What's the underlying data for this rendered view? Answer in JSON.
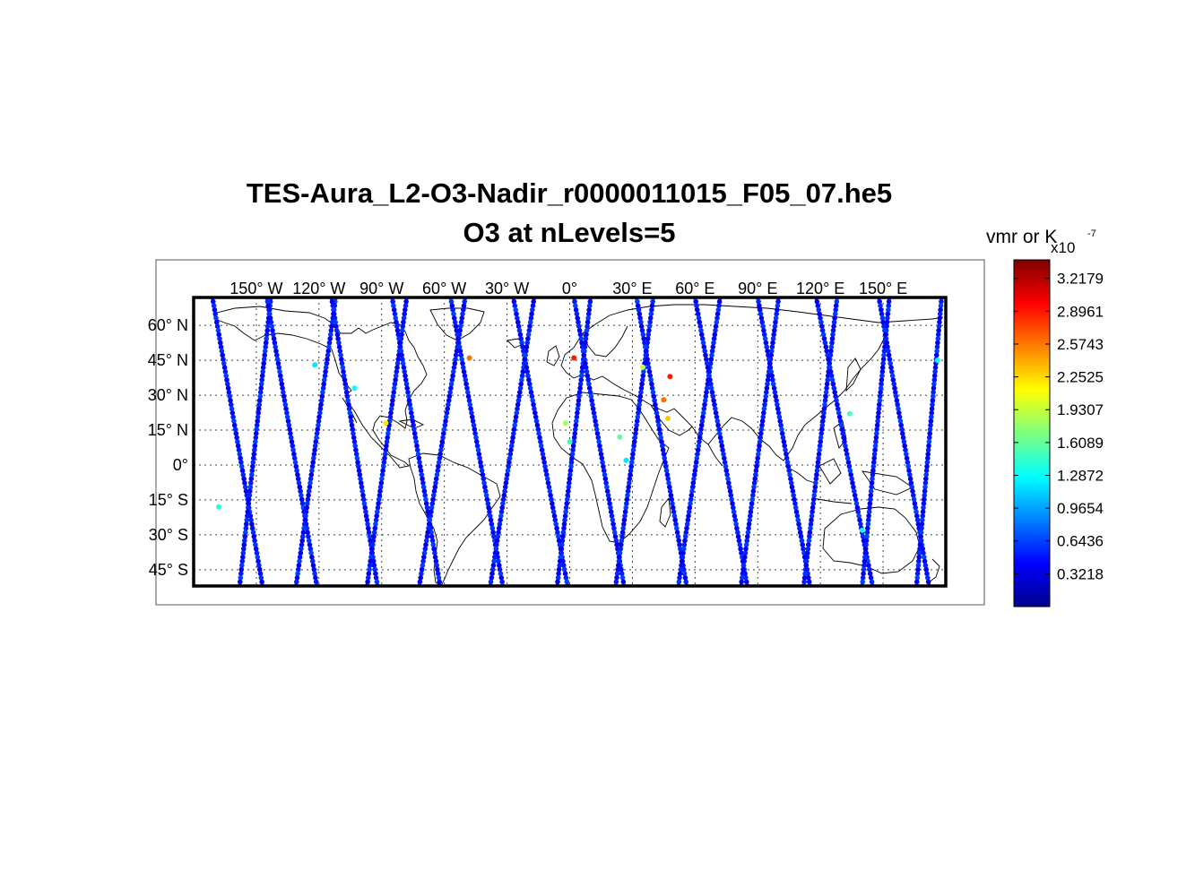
{
  "figure": {
    "title": "TES-Aura_L2-O3-Nadir_r0000011015_F05_07.he5",
    "subtitle": "O3 at nLevels=5"
  },
  "map": {
    "projection": "equirectangular",
    "lon_range": [
      -180,
      180
    ],
    "lat_range": [
      -52,
      72
    ],
    "grid": true,
    "coastlines": true,
    "lon_ticks": [
      {
        "value": -150,
        "label": "150° W"
      },
      {
        "value": -120,
        "label": "120° W"
      },
      {
        "value": -90,
        "label": "90° W"
      },
      {
        "value": -60,
        "label": "60° W"
      },
      {
        "value": -30,
        "label": "30° W"
      },
      {
        "value": 0,
        "label": "0°"
      },
      {
        "value": 30,
        "label": "30° E"
      },
      {
        "value": 60,
        "label": "60° E"
      },
      {
        "value": 90,
        "label": "90° E"
      },
      {
        "value": 120,
        "label": "120° E"
      },
      {
        "value": 150,
        "label": "150° E"
      }
    ],
    "lat_ticks": [
      {
        "value": 60,
        "label": "60° N"
      },
      {
        "value": 45,
        "label": "45° N"
      },
      {
        "value": 30,
        "label": "30° N"
      },
      {
        "value": 15,
        "label": "15° N"
      },
      {
        "value": 0,
        "label": "0°"
      },
      {
        "value": -15,
        "label": "15° S"
      },
      {
        "value": -30,
        "label": "30° S"
      },
      {
        "value": -45,
        "label": "45° S"
      }
    ]
  },
  "colorbar": {
    "label": "vmr or K",
    "exponent_label": "x10",
    "exponent_power": "-7",
    "range": [
      0.0,
      3.4
    ],
    "ticks": [
      3.2179,
      2.8961,
      2.5743,
      2.2525,
      1.9307,
      1.6089,
      1.2872,
      0.9654,
      0.6436,
      0.3218
    ],
    "tick_labels": [
      "3.2179",
      "2.8961",
      "2.5743",
      "2.2525",
      "1.9307",
      "1.6089",
      "1.2872",
      "0.9654",
      "0.6436",
      "0.3218"
    ],
    "colormap": "jet"
  },
  "chart_data": {
    "type": "scatter",
    "title": "TES-Aura_L2-O3-Nadir_r0000011015_F05_07.he5",
    "subtitle": "O3 at nLevels=5",
    "xlabel": "",
    "ylabel": "",
    "xlim": [
      -180,
      180
    ],
    "ylim": [
      -52,
      72
    ],
    "typical_value": 0.5,
    "orbit_tracks": [
      {
        "lon_north": -171,
        "lon_south": -147,
        "direction": "ascending"
      },
      {
        "lon_north": -143,
        "lon_south": -158,
        "direction": "descending"
      },
      {
        "lon_north": -145,
        "lon_south": -121,
        "direction": "ascending"
      },
      {
        "lon_north": -112,
        "lon_south": -131,
        "direction": "descending"
      },
      {
        "lon_north": -114,
        "lon_south": -92,
        "direction": "ascending"
      },
      {
        "lon_north": -78,
        "lon_south": -97,
        "direction": "descending"
      },
      {
        "lon_north": -85,
        "lon_south": -62,
        "direction": "ascending"
      },
      {
        "lon_north": -50,
        "lon_south": -72,
        "direction": "descending"
      },
      {
        "lon_north": -57,
        "lon_south": -32,
        "direction": "ascending"
      },
      {
        "lon_north": -17,
        "lon_south": -38,
        "direction": "descending"
      },
      {
        "lon_north": -27,
        "lon_south": -1,
        "direction": "ascending"
      },
      {
        "lon_north": 10,
        "lon_south": -6,
        "direction": "descending"
      },
      {
        "lon_north": 2,
        "lon_south": 26,
        "direction": "ascending"
      },
      {
        "lon_north": 40,
        "lon_south": 22,
        "direction": "descending"
      },
      {
        "lon_north": 32,
        "lon_south": 56,
        "direction": "ascending"
      },
      {
        "lon_north": 72,
        "lon_south": 52,
        "direction": "descending"
      },
      {
        "lon_north": 60,
        "lon_south": 85,
        "direction": "ascending"
      },
      {
        "lon_north": 100,
        "lon_south": 82,
        "direction": "descending"
      },
      {
        "lon_north": 90,
        "lon_south": 115,
        "direction": "ascending"
      },
      {
        "lon_north": 128,
        "lon_south": 112,
        "direction": "descending"
      },
      {
        "lon_north": 118,
        "lon_south": 145,
        "direction": "ascending"
      },
      {
        "lon_north": 153,
        "lon_south": 140,
        "direction": "descending"
      },
      {
        "lon_north": 148,
        "lon_south": 172,
        "direction": "ascending"
      },
      {
        "lon_north": 178,
        "lon_south": 166,
        "direction": "descending"
      }
    ],
    "notable_points": [
      {
        "lon": -48,
        "lat": 46,
        "value": 2.6
      },
      {
        "lon": 2,
        "lat": 46,
        "value": 2.9
      },
      {
        "lon": 48,
        "lat": 38,
        "value": 2.9
      },
      {
        "lon": 45,
        "lat": 28,
        "value": 2.6
      },
      {
        "lon": 47,
        "lat": 20,
        "value": 2.3
      },
      {
        "lon": 35,
        "lat": 42,
        "value": 1.9
      },
      {
        "lon": -2,
        "lat": 18,
        "value": 1.8
      },
      {
        "lon": -88,
        "lat": 18,
        "value": 2.2
      },
      {
        "lon": 24,
        "lat": 12,
        "value": 1.6
      },
      {
        "lon": -103,
        "lat": 33,
        "value": 1.3
      },
      {
        "lon": 134,
        "lat": 22,
        "value": 1.5
      },
      {
        "lon": 140,
        "lat": -28,
        "value": 1.3
      },
      {
        "lon": -168,
        "lat": -18,
        "value": 1.4
      },
      {
        "lon": 176,
        "lat": 45,
        "value": 1.3
      },
      {
        "lon": -122,
        "lat": 43,
        "value": 1.2
      },
      {
        "lon": 0,
        "lat": 10,
        "value": 1.5
      },
      {
        "lon": 27,
        "lat": 2,
        "value": 1.2
      }
    ]
  }
}
